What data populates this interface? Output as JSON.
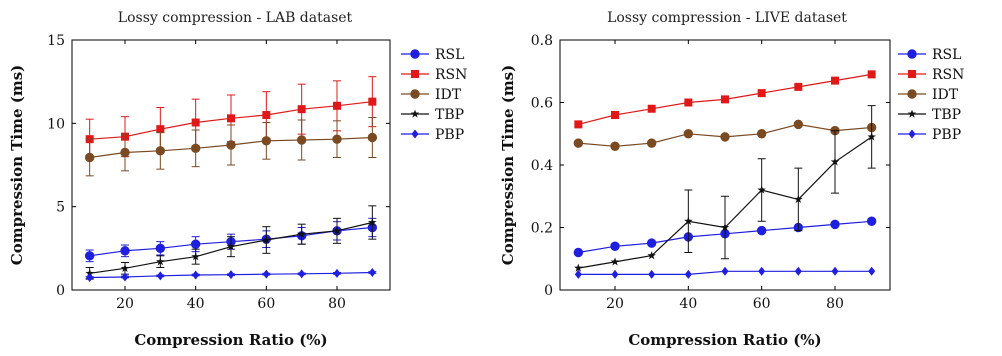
{
  "chart_data": [
    {
      "type": "line",
      "title": "Lossy compression - LAB dataset",
      "xlabel": "Compression Ratio (%)",
      "ylabel": "Compression Time (ms)",
      "xlim": [
        5,
        95
      ],
      "ylim": [
        0,
        15
      ],
      "xticks": [
        20,
        40,
        60,
        80
      ],
      "yticks": [
        0,
        5,
        10,
        15
      ],
      "xtick_labels": [
        "20",
        "40",
        "60",
        "80"
      ],
      "ytick_labels": [
        "0",
        "5",
        "10",
        "15"
      ],
      "legend": "right-outside",
      "x": [
        10,
        20,
        30,
        40,
        50,
        60,
        70,
        80,
        90
      ],
      "series": [
        {
          "name": "RSL",
          "color": "#1f1fe0",
          "marker": "circle",
          "values": [
            2.05,
            2.35,
            2.5,
            2.75,
            2.9,
            3.05,
            3.25,
            3.55,
            3.75
          ],
          "errors": [
            0.35,
            0.35,
            0.4,
            0.45,
            0.45,
            0.5,
            0.5,
            0.55,
            0.55
          ]
        },
        {
          "name": "RSN",
          "color": "#e01818",
          "marker": "square",
          "values": [
            9.05,
            9.2,
            9.65,
            10.05,
            10.3,
            10.5,
            10.85,
            11.05,
            11.3
          ],
          "errors": [
            1.2,
            1.2,
            1.3,
            1.4,
            1.4,
            1.4,
            1.5,
            1.5,
            1.5
          ]
        },
        {
          "name": "IDT",
          "color": "#7a4a22",
          "marker": "circle",
          "values": [
            7.95,
            8.25,
            8.35,
            8.5,
            8.7,
            8.95,
            9.0,
            9.05,
            9.15
          ],
          "errors": [
            1.1,
            1.1,
            1.1,
            1.1,
            1.2,
            1.1,
            1.2,
            1.1,
            1.2
          ]
        },
        {
          "name": "TBP",
          "color": "#111111",
          "marker": "star",
          "values": [
            1.0,
            1.3,
            1.7,
            2.0,
            2.6,
            3.0,
            3.35,
            3.55,
            4.05
          ],
          "errors": [
            0.35,
            0.35,
            0.35,
            0.45,
            0.6,
            0.8,
            0.6,
            0.75,
            1.0
          ]
        },
        {
          "name": "PBP",
          "color": "#1f1fe0",
          "marker": "diamond",
          "values": [
            0.75,
            0.78,
            0.85,
            0.9,
            0.92,
            0.95,
            0.97,
            1.0,
            1.05
          ],
          "errors": [
            0.05,
            0.05,
            0.05,
            0.05,
            0.05,
            0.05,
            0.05,
            0.05,
            0.05
          ]
        }
      ]
    },
    {
      "type": "line",
      "title": "Lossy compression - LIVE dataset",
      "xlabel": "Compression Ratio (%)",
      "ylabel": "Compression Time (ms)",
      "xlim": [
        5,
        95
      ],
      "ylim": [
        0,
        0.8
      ],
      "xticks": [
        20,
        40,
        60,
        80
      ],
      "yticks": [
        0,
        0.2,
        0.4,
        0.6,
        0.8
      ],
      "xtick_labels": [
        "20",
        "40",
        "60",
        "80"
      ],
      "ytick_labels": [
        "0",
        "0.2",
        "0.4",
        "0.6",
        "0.8"
      ],
      "legend": "right-outside",
      "x": [
        10,
        20,
        30,
        40,
        50,
        60,
        70,
        80,
        90
      ],
      "series": [
        {
          "name": "RSL",
          "color": "#1f1fe0",
          "marker": "circle",
          "values": [
            0.12,
            0.14,
            0.15,
            0.17,
            0.18,
            0.19,
            0.2,
            0.21,
            0.22
          ],
          "errors": null
        },
        {
          "name": "RSN",
          "color": "#e01818",
          "marker": "square",
          "values": [
            0.53,
            0.56,
            0.58,
            0.6,
            0.61,
            0.63,
            0.65,
            0.67,
            0.69
          ],
          "errors": null
        },
        {
          "name": "IDT",
          "color": "#7a4a22",
          "marker": "circle",
          "values": [
            0.47,
            0.46,
            0.47,
            0.5,
            0.49,
            0.5,
            0.53,
            0.51,
            0.52
          ],
          "errors": null
        },
        {
          "name": "TBP",
          "color": "#111111",
          "marker": "star",
          "values": [
            0.07,
            0.09,
            0.11,
            0.22,
            0.2,
            0.32,
            0.29,
            0.41,
            0.49
          ],
          "errors": [
            0,
            0,
            0,
            0.1,
            0.1,
            0.1,
            0.1,
            0.1,
            0.1
          ]
        },
        {
          "name": "PBP",
          "color": "#1f1fe0",
          "marker": "diamond",
          "values": [
            0.05,
            0.05,
            0.05,
            0.05,
            0.06,
            0.06,
            0.06,
            0.06,
            0.06
          ],
          "errors": null
        }
      ]
    }
  ]
}
